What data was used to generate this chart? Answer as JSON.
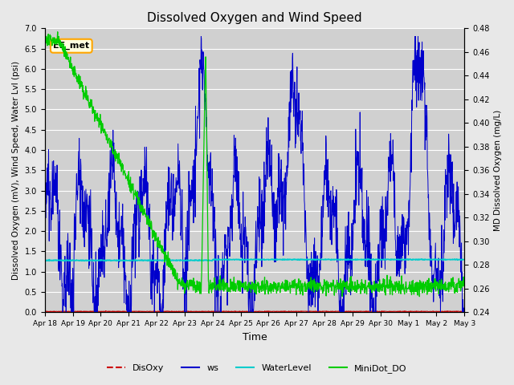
{
  "title": "Dissolved Oxygen and Wind Speed",
  "xlabel": "Time",
  "ylabel_left": "Dissolved Oxygen (mV), Wind Speed, Water Lvl (psi)",
  "ylabel_right": "MD Dissolved Oxygen (mg/L)",
  "ylim_left": [
    0.0,
    7.0
  ],
  "ylim_right": [
    0.24,
    0.48
  ],
  "annotation": "EE_met",
  "bg_color": "#e8e8e8",
  "axes_bg_color": "#d0d0d0",
  "legend_items": [
    "DisOxy",
    "ws",
    "WaterLevel",
    "MiniDot_DO"
  ],
  "legend_colors": [
    "#cc0000",
    "#0000cc",
    "#00cccc",
    "#00cc00"
  ],
  "grid_color": "#ffffff",
  "tick_labels_x": [
    "Apr 18",
    "Apr 19",
    "Apr 20",
    "Apr 21",
    "Apr 22",
    "Apr 23",
    "Apr 24",
    "Apr 25",
    "Apr 26",
    "Apr 27",
    "Apr 28",
    "Apr 29",
    "Apr 30",
    "May 1",
    "May 2",
    "May 3"
  ],
  "yticks_left": [
    0.0,
    0.5,
    1.0,
    1.5,
    2.0,
    2.5,
    3.0,
    3.5,
    4.0,
    4.5,
    5.0,
    5.5,
    6.0,
    6.5,
    7.0
  ],
  "yticks_right": [
    0.24,
    0.26,
    0.28,
    0.3,
    0.32,
    0.34,
    0.36,
    0.38,
    0.4,
    0.42,
    0.44,
    0.46,
    0.48
  ]
}
